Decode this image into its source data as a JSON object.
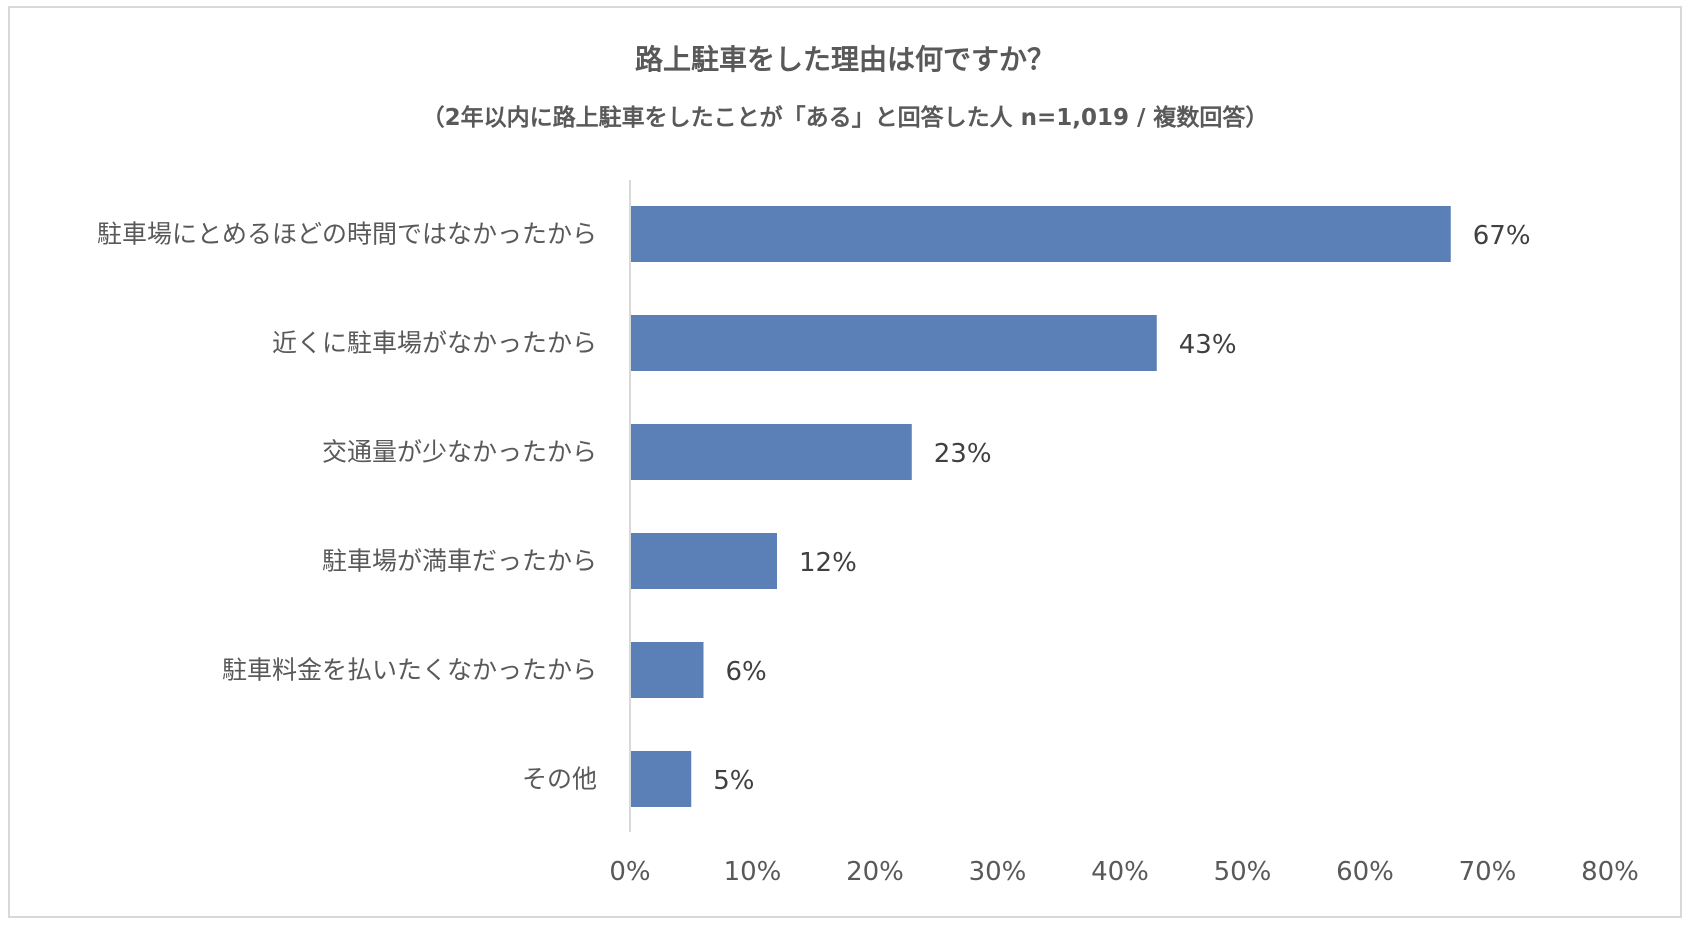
{
  "chart_data": {
    "type": "bar",
    "orientation": "horizontal",
    "title": "路上駐車をした理由は何ですか？",
    "subtitle": "（2年以内に路上駐車をしたことが「ある」と回答した人 n=1,019 / 複数回答）",
    "categories": [
      "駐車場にとめるほどの時間ではなかったから",
      "近くに駐車場がなかったから",
      "交通量が少なかったから",
      "駐車場が満車だったから",
      "駐車料金を払いたくなかったから",
      "その他"
    ],
    "values": [
      67,
      43,
      23,
      12,
      6,
      5
    ],
    "value_labels": [
      "67%",
      "43%",
      "23%",
      "12%",
      "6%",
      "5%"
    ],
    "xlim": [
      0,
      80
    ],
    "x_ticks": [
      0,
      10,
      20,
      30,
      40,
      50,
      60,
      70,
      80
    ],
    "x_tick_labels": [
      "0%",
      "10%",
      "20%",
      "30%",
      "40%",
      "50%",
      "60%",
      "70%",
      "80%"
    ],
    "grid": false,
    "legend": "none",
    "bar_color": "#5b7fb7"
  }
}
